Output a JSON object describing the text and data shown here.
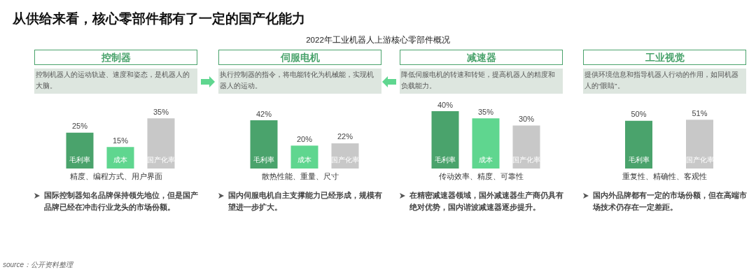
{
  "chart_data": [
    {
      "type": "other",
      "title": "从供给来看，核心零部件都有了一定的国产化能力",
      "subtitle": "2022年工业机器人上游核心零部件概况",
      "annotations": [
        "source：公开资料整理"
      ]
    },
    {
      "type": "bar",
      "title": "控制器",
      "subtitle": "控制机器人的运动轨迹、速度和姿态，是机器人的大脑。",
      "xlabel": "精度、编程方式、用户界面",
      "categories": [
        "毛利率",
        "成本",
        "国产化率"
      ],
      "values": [
        25,
        15,
        35
      ],
      "value_labels": [
        "25%",
        "15%",
        "35%"
      ],
      "colors": [
        "#4aa36c",
        "#5fd68f",
        "#c8c8c8"
      ],
      "tick_labels": "x",
      "annotations": [
        "国际控制器知名品牌保持领先地位，但是国产品牌已经在冲击行业龙头的市场份额。"
      ]
    },
    {
      "type": "bar",
      "title": "伺服电机",
      "subtitle": "执行控制器的指令，将电能转化为机械能，实现机器人的运动。",
      "xlabel": "散热性能、重量、尺寸",
      "categories": [
        "毛利率",
        "成本",
        "国产化率"
      ],
      "values": [
        42,
        20,
        22
      ],
      "value_labels": [
        "42%",
        "20%",
        "22%"
      ],
      "colors": [
        "#4aa36c",
        "#5fd68f",
        "#c8c8c8"
      ],
      "tick_labels": "x",
      "annotations": [
        "国内伺服电机自主支撑能力已经形成，规模有望进一步扩大。"
      ]
    },
    {
      "type": "bar",
      "title": "减速器",
      "subtitle": "降低伺服电机的转速和转矩，提高机器人的精度和负载能力。",
      "xlabel": "传动效率、精度、可靠性",
      "categories": [
        "毛利率",
        "成本",
        "国产化率"
      ],
      "values": [
        40,
        35,
        30
      ],
      "value_labels": [
        "40%",
        "35%",
        "30%"
      ],
      "colors": [
        "#4aa36c",
        "#5fd68f",
        "#c8c8c8"
      ],
      "tick_labels": "x",
      "annotations": [
        "在精密减速器领域，国外减速器生产商仍具有绝对优势，国内谐波减速器逐步提升。"
      ]
    },
    {
      "type": "bar",
      "title": "工业视觉",
      "subtitle": "提供环境信息和指导机器人行动的作用，如同机器人的“眼睛”。",
      "xlabel": "重复性、精确性、客观性",
      "categories": [
        "毛利率",
        "国产化率"
      ],
      "values": [
        50,
        51
      ],
      "value_labels": [
        "50%",
        "51%"
      ],
      "colors": [
        "#4aa36c",
        "#c8c8c8"
      ],
      "tick_labels": "x",
      "annotations": [
        "国内外品牌都有一定的市场份额，但在高端市场技术仍存在一定差距。"
      ]
    }
  ]
}
